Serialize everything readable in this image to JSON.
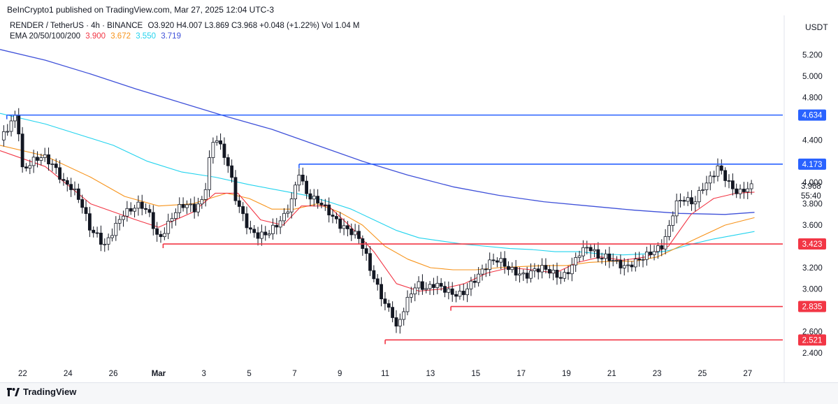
{
  "header": {
    "published": "BeInCrypto1 published on TradingView.com, Mar 27, 2025 12:04 UTC-3",
    "symbol": "RENDER / TetherUS · 4h · BINANCE",
    "ohlc": "O3.920  H4.007  L3.869  C3.968  +0.048 (+1.22%)  Vol 1.04 M",
    "ema_label": "EMA 20/50/100/200",
    "ema_values": [
      {
        "value": "3.900",
        "color": "#f23645"
      },
      {
        "value": "3.672",
        "color": "#f7931a"
      },
      {
        "value": "3.550",
        "color": "#22d3ee"
      },
      {
        "value": "3.719",
        "color": "#3f51d9"
      }
    ],
    "currency": "USDT"
  },
  "footer": {
    "brand": "TradingView"
  },
  "chart_data": {
    "type": "line",
    "title": "RENDER / TetherUS · 4h · BINANCE",
    "y_ticks": [
      "5.200",
      "5.000",
      "4.800",
      "4.400",
      "4.000",
      "3.800",
      "3.600",
      "3.200",
      "3.000",
      "2.600",
      "2.400"
    ],
    "x_ticks": [
      {
        "label": "22",
        "x": 1.0
      },
      {
        "label": "24",
        "x": 3.0
      },
      {
        "label": "26",
        "x": 5.0
      },
      {
        "label": "Mar",
        "x": 7.0
      },
      {
        "label": "3",
        "x": 9.0
      },
      {
        "label": "5",
        "x": 11.0
      },
      {
        "label": "7",
        "x": 13.0
      },
      {
        "label": "9",
        "x": 15.0
      },
      {
        "label": "11",
        "x": 17.0
      },
      {
        "label": "13",
        "x": 19.0
      },
      {
        "label": "15",
        "x": 21.0
      },
      {
        "label": "17",
        "x": 23.0
      },
      {
        "label": "19",
        "x": 25.0
      },
      {
        "label": "21",
        "x": 27.0
      },
      {
        "label": "23",
        "x": 29.0
      },
      {
        "label": "25",
        "x": 31.0
      },
      {
        "label": "27",
        "x": 33.0
      }
    ],
    "xlim": [
      0,
      34.55
    ],
    "ylim": [
      2.3,
      5.4
    ],
    "grid": false,
    "levels": [
      {
        "price": 4.634,
        "label": "4.634",
        "color": "#2962ff",
        "x_start": 0.3
      },
      {
        "price": 4.173,
        "label": "4.173",
        "color": "#2962ff",
        "x_start": 13.2
      },
      {
        "price": 3.423,
        "label": "3.423",
        "color": "#f23645",
        "x_start": 7.2
      },
      {
        "price": 2.835,
        "label": "2.835",
        "color": "#f23645",
        "x_start": 19.9
      },
      {
        "price": 2.521,
        "label": "2.521",
        "color": "#f23645",
        "x_start": 17.0
      }
    ],
    "current_price": {
      "price": 3.968,
      "label": "3.968",
      "countdown": "55:40"
    },
    "colors": {
      "up": "#ffffff",
      "down": "#131722",
      "ema20": "#f23645",
      "ema50": "#f7931a",
      "ema100": "#22d3ee",
      "ema200": "#3f51d9"
    },
    "close_path": [
      [
        0.0,
        4.4
      ],
      [
        0.45,
        4.55
      ],
      [
        0.75,
        4.65
      ],
      [
        1.0,
        4.1
      ],
      [
        1.4,
        4.2
      ],
      [
        1.9,
        4.25
      ],
      [
        2.4,
        4.15
      ],
      [
        2.8,
        4.0
      ],
      [
        3.2,
        3.95
      ],
      [
        3.6,
        3.8
      ],
      [
        4.0,
        3.55
      ],
      [
        4.3,
        3.5
      ],
      [
        4.6,
        3.4
      ],
      [
        5.0,
        3.55
      ],
      [
        5.4,
        3.7
      ],
      [
        5.8,
        3.75
      ],
      [
        6.2,
        3.8
      ],
      [
        6.6,
        3.7
      ],
      [
        7.0,
        3.45
      ],
      [
        7.4,
        3.6
      ],
      [
        7.8,
        3.75
      ],
      [
        8.2,
        3.8
      ],
      [
        8.6,
        3.75
      ],
      [
        9.0,
        3.85
      ],
      [
        9.3,
        4.3
      ],
      [
        9.5,
        4.45
      ],
      [
        9.8,
        4.3
      ],
      [
        10.1,
        4.15
      ],
      [
        10.4,
        3.85
      ],
      [
        10.7,
        3.7
      ],
      [
        11.0,
        3.55
      ],
      [
        11.4,
        3.5
      ],
      [
        11.8,
        3.52
      ],
      [
        12.2,
        3.6
      ],
      [
        12.6,
        3.7
      ],
      [
        12.9,
        3.85
      ],
      [
        13.2,
        4.1
      ],
      [
        13.5,
        3.9
      ],
      [
        13.8,
        3.85
      ],
      [
        14.2,
        3.8
      ],
      [
        14.6,
        3.7
      ],
      [
        15.0,
        3.6
      ],
      [
        15.4,
        3.55
      ],
      [
        15.8,
        3.5
      ],
      [
        16.1,
        3.35
      ],
      [
        16.4,
        3.15
      ],
      [
        16.7,
        3.0
      ],
      [
        17.0,
        2.85
      ],
      [
        17.3,
        2.78
      ],
      [
        17.5,
        2.62
      ],
      [
        17.8,
        2.8
      ],
      [
        18.1,
        2.95
      ],
      [
        18.4,
        3.05
      ],
      [
        18.8,
        3.0
      ],
      [
        19.2,
        3.05
      ],
      [
        19.6,
        3.0
      ],
      [
        20.0,
        2.95
      ],
      [
        20.4,
        2.95
      ],
      [
        20.8,
        3.05
      ],
      [
        21.2,
        3.15
      ],
      [
        21.6,
        3.25
      ],
      [
        22.0,
        3.28
      ],
      [
        22.4,
        3.2
      ],
      [
        22.8,
        3.15
      ],
      [
        23.2,
        3.12
      ],
      [
        23.6,
        3.18
      ],
      [
        24.0,
        3.2
      ],
      [
        24.4,
        3.15
      ],
      [
        24.8,
        3.1
      ],
      [
        25.2,
        3.2
      ],
      [
        25.6,
        3.35
      ],
      [
        26.0,
        3.4
      ],
      [
        26.4,
        3.3
      ],
      [
        26.8,
        3.3
      ],
      [
        27.2,
        3.25
      ],
      [
        27.6,
        3.2
      ],
      [
        28.0,
        3.25
      ],
      [
        28.4,
        3.3
      ],
      [
        28.8,
        3.35
      ],
      [
        29.2,
        3.4
      ],
      [
        29.5,
        3.55
      ],
      [
        29.8,
        3.8
      ],
      [
        30.2,
        3.85
      ],
      [
        30.6,
        3.8
      ],
      [
        31.0,
        3.95
      ],
      [
        31.4,
        4.05
      ],
      [
        31.7,
        4.15
      ],
      [
        32.0,
        4.05
      ],
      [
        32.3,
        3.95
      ],
      [
        32.6,
        3.9
      ],
      [
        33.0,
        3.95
      ],
      [
        33.3,
        3.97
      ]
    ],
    "ema20": [
      [
        0.0,
        4.3
      ],
      [
        2.0,
        4.15
      ],
      [
        4.0,
        3.8
      ],
      [
        6.0,
        3.65
      ],
      [
        7.0,
        3.58
      ],
      [
        8.5,
        3.72
      ],
      [
        9.5,
        3.9
      ],
      [
        10.5,
        3.9
      ],
      [
        11.5,
        3.65
      ],
      [
        12.5,
        3.6
      ],
      [
        13.3,
        3.78
      ],
      [
        14.5,
        3.78
      ],
      [
        15.5,
        3.58
      ],
      [
        16.5,
        3.35
      ],
      [
        17.5,
        3.05
      ],
      [
        18.5,
        2.98
      ],
      [
        19.5,
        3.0
      ],
      [
        20.5,
        3.05
      ],
      [
        21.5,
        3.15
      ],
      [
        22.5,
        3.2
      ],
      [
        23.5,
        3.18
      ],
      [
        24.5,
        3.15
      ],
      [
        25.5,
        3.25
      ],
      [
        26.5,
        3.3
      ],
      [
        27.5,
        3.27
      ],
      [
        28.5,
        3.3
      ],
      [
        29.5,
        3.4
      ],
      [
        30.5,
        3.7
      ],
      [
        31.5,
        3.85
      ],
      [
        32.5,
        3.9
      ],
      [
        33.3,
        3.91
      ]
    ],
    "ema50": [
      [
        0.0,
        4.35
      ],
      [
        2.0,
        4.25
      ],
      [
        4.0,
        4.05
      ],
      [
        5.5,
        3.87
      ],
      [
        7.0,
        3.78
      ],
      [
        8.5,
        3.8
      ],
      [
        10.0,
        3.9
      ],
      [
        11.0,
        3.85
      ],
      [
        12.0,
        3.75
      ],
      [
        13.0,
        3.75
      ],
      [
        14.0,
        3.8
      ],
      [
        15.0,
        3.72
      ],
      [
        16.0,
        3.6
      ],
      [
        17.0,
        3.4
      ],
      [
        18.0,
        3.28
      ],
      [
        19.0,
        3.2
      ],
      [
        20.0,
        3.18
      ],
      [
        21.0,
        3.18
      ],
      [
        22.0,
        3.2
      ],
      [
        23.0,
        3.21
      ],
      [
        24.0,
        3.22
      ],
      [
        25.0,
        3.22
      ],
      [
        26.0,
        3.25
      ],
      [
        27.0,
        3.26
      ],
      [
        28.0,
        3.26
      ],
      [
        29.0,
        3.3
      ],
      [
        30.0,
        3.4
      ],
      [
        31.0,
        3.5
      ],
      [
        32.0,
        3.6
      ],
      [
        33.3,
        3.67
      ]
    ],
    "ema100": [
      [
        0.0,
        4.65
      ],
      [
        2.0,
        4.55
      ],
      [
        3.5,
        4.45
      ],
      [
        5.0,
        4.35
      ],
      [
        6.5,
        4.2
      ],
      [
        8.0,
        4.1
      ],
      [
        9.5,
        4.05
      ],
      [
        11.0,
        3.98
      ],
      [
        12.5,
        3.92
      ],
      [
        13.5,
        3.88
      ],
      [
        14.5,
        3.82
      ],
      [
        15.5,
        3.75
      ],
      [
        16.5,
        3.65
      ],
      [
        17.5,
        3.55
      ],
      [
        18.5,
        3.48
      ],
      [
        19.5,
        3.45
      ],
      [
        20.5,
        3.42
      ],
      [
        21.5,
        3.4
      ],
      [
        22.5,
        3.38
      ],
      [
        23.5,
        3.37
      ],
      [
        24.5,
        3.35
      ],
      [
        25.5,
        3.35
      ],
      [
        26.5,
        3.33
      ],
      [
        27.5,
        3.32
      ],
      [
        28.5,
        3.33
      ],
      [
        29.5,
        3.36
      ],
      [
        30.5,
        3.42
      ],
      [
        31.5,
        3.47
      ],
      [
        33.3,
        3.54
      ]
    ],
    "ema200": [
      [
        0.0,
        5.25
      ],
      [
        2.0,
        5.15
      ],
      [
        4.0,
        5.02
      ],
      [
        6.0,
        4.88
      ],
      [
        8.0,
        4.75
      ],
      [
        10.0,
        4.62
      ],
      [
        12.0,
        4.5
      ],
      [
        14.0,
        4.35
      ],
      [
        16.0,
        4.2
      ],
      [
        18.0,
        4.07
      ],
      [
        20.0,
        3.96
      ],
      [
        22.0,
        3.88
      ],
      [
        24.0,
        3.82
      ],
      [
        26.0,
        3.78
      ],
      [
        28.0,
        3.74
      ],
      [
        30.0,
        3.71
      ],
      [
        32.0,
        3.7
      ],
      [
        33.3,
        3.72
      ]
    ]
  }
}
